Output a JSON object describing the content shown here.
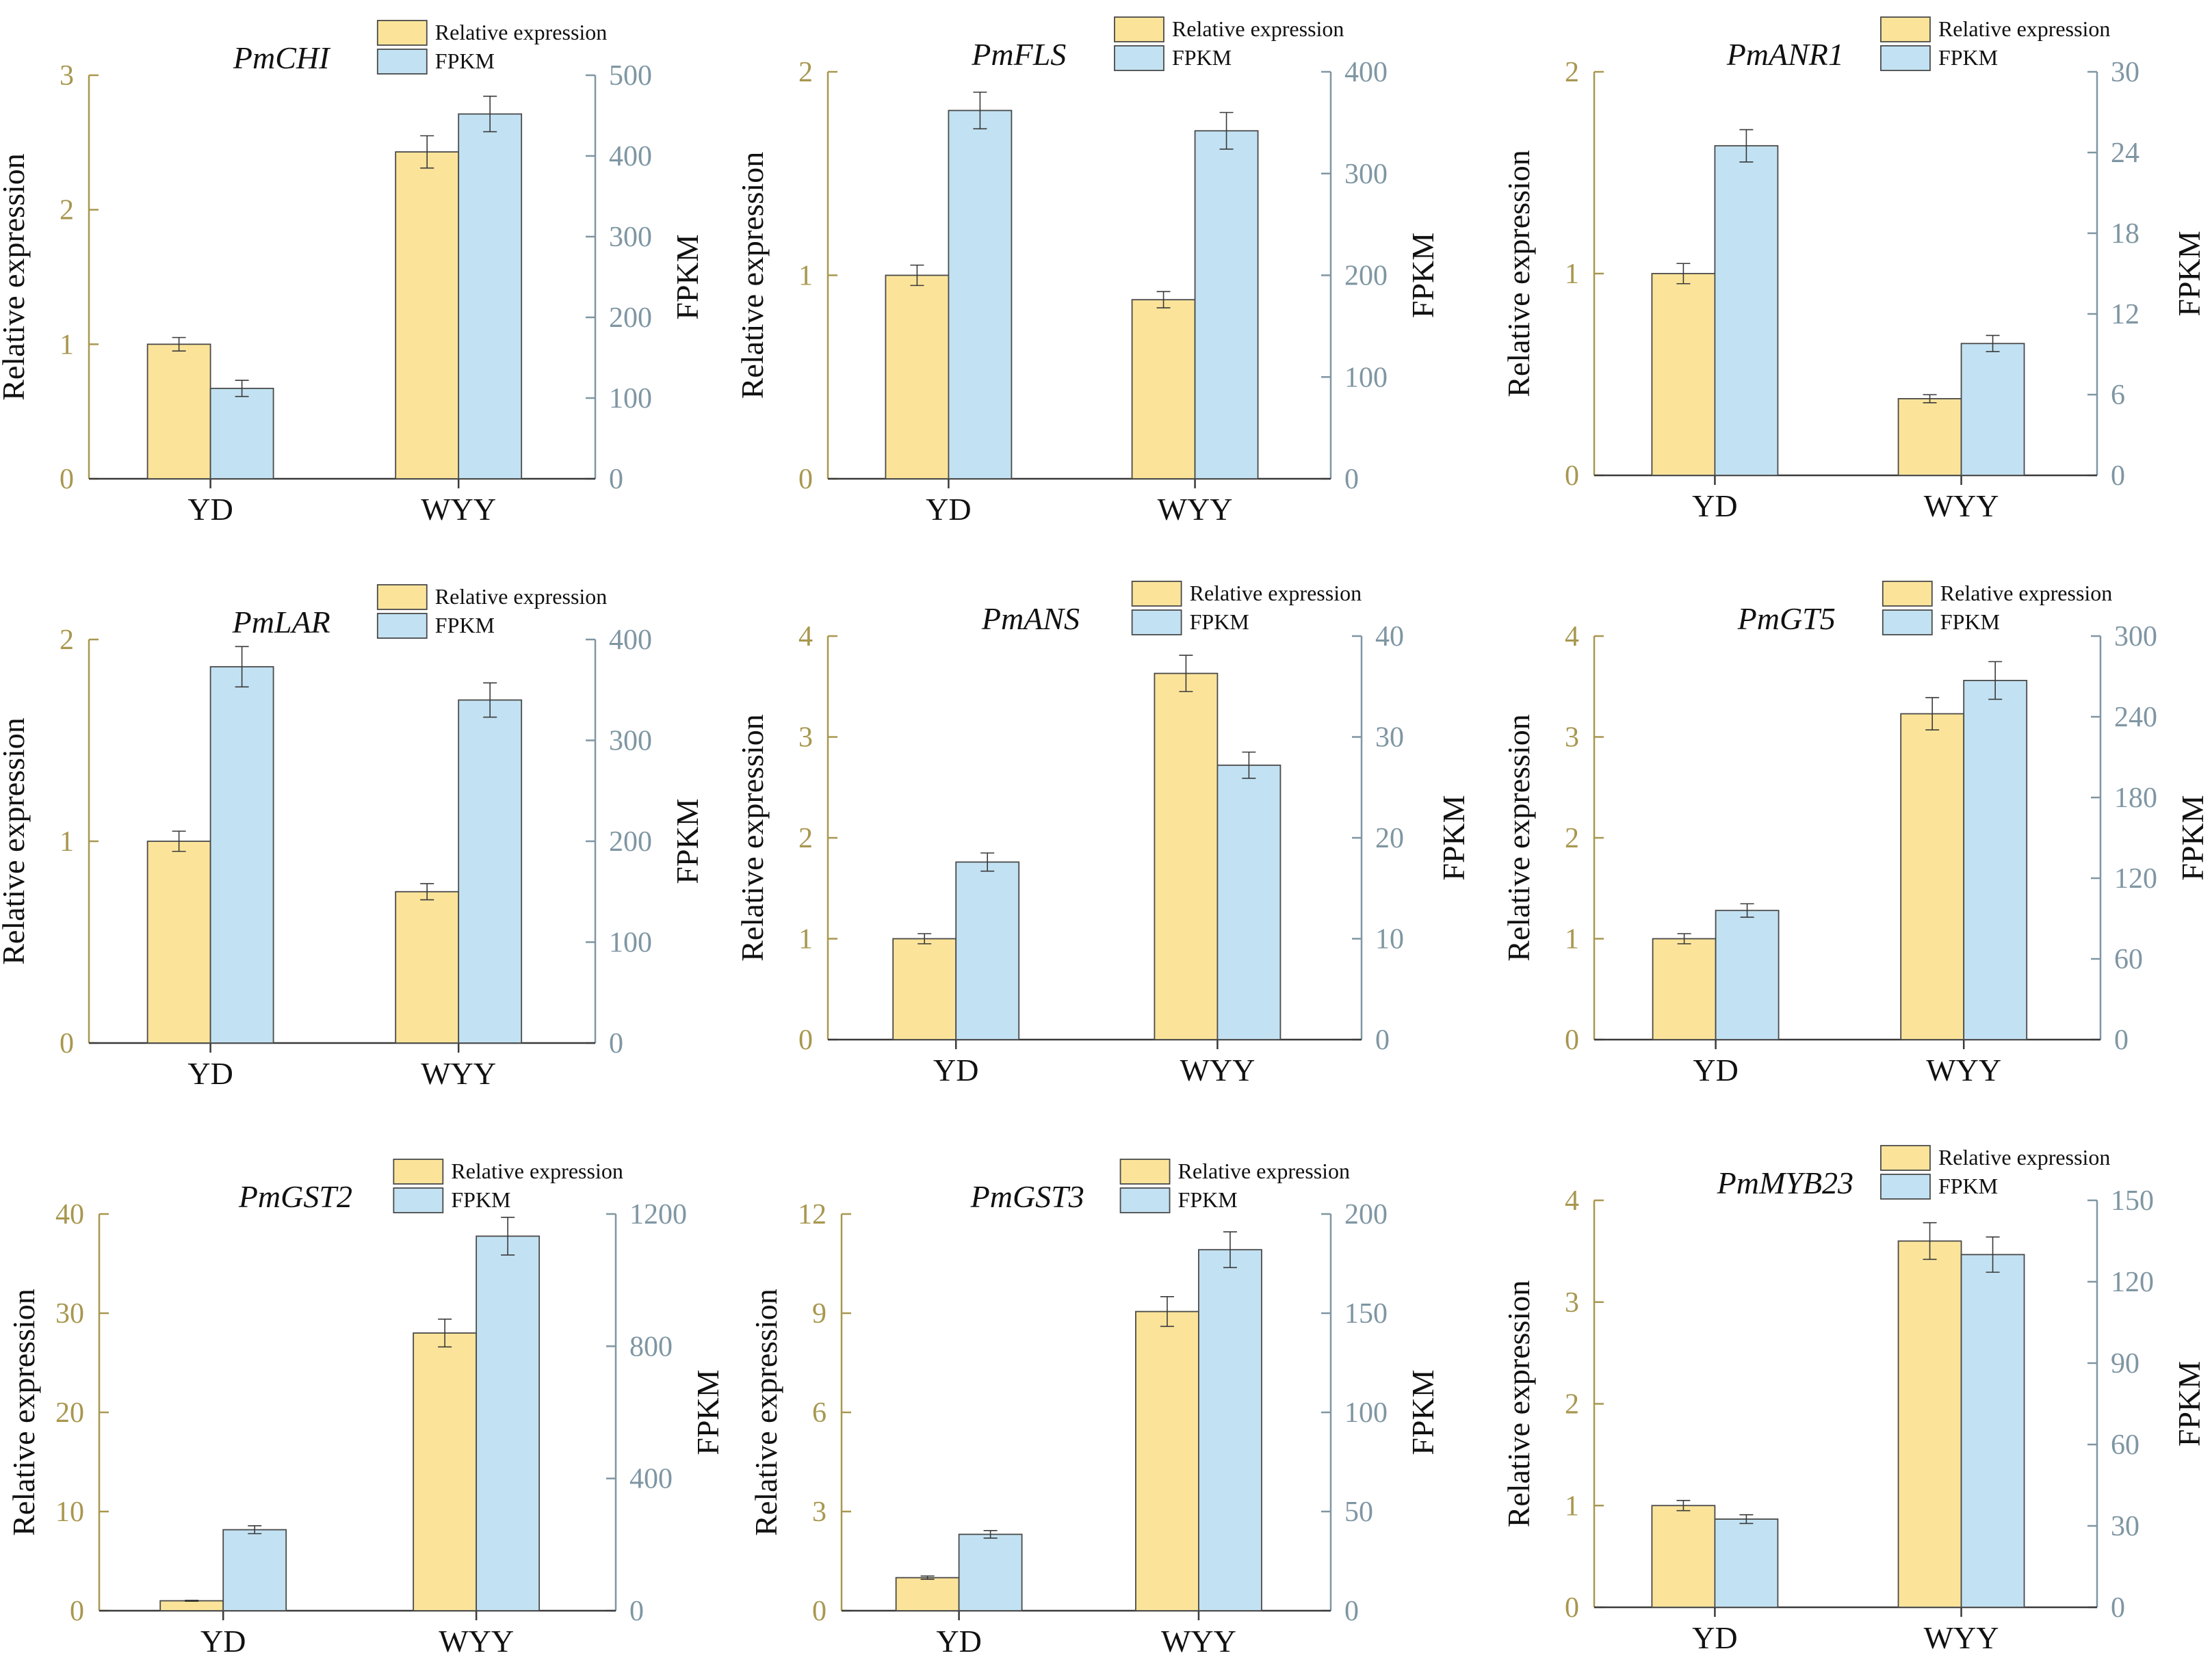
{
  "legend": {
    "relative_label": "Relative expression",
    "fpkm_label": "FPKM"
  },
  "colors": {
    "relative_fill": "#fbe49a",
    "fpkm_fill": "#c2e2f3",
    "bar_stroke": "#4a4a4a",
    "left_axis": "#a8974f",
    "right_axis": "#7f96a3",
    "axis_line": "#3a3a3a",
    "text": "#111111"
  },
  "chart_data": [
    {
      "type": "bar",
      "title": "PmCHI",
      "categories": [
        "YD",
        "WYY"
      ],
      "ylabel": "Relative expression",
      "y2label": "FPKM",
      "ylim": [
        0,
        3
      ],
      "yticks": [
        0,
        1,
        2,
        3
      ],
      "y2lim": [
        0,
        500
      ],
      "y2ticks": [
        0,
        100,
        200,
        300,
        400,
        500
      ],
      "series": [
        {
          "name": "Relative expression",
          "axis": "left",
          "values": [
            1.0,
            2.43
          ],
          "errors": [
            0.05,
            0.12
          ]
        },
        {
          "name": "FPKM",
          "axis": "right",
          "values": [
            112,
            452
          ],
          "errors": [
            10,
            22
          ]
        }
      ]
    },
    {
      "type": "bar",
      "title": "PmFLS",
      "categories": [
        "YD",
        "WYY"
      ],
      "ylabel": "Relative expression",
      "y2label": "FPKM",
      "ylim": [
        0,
        2
      ],
      "yticks": [
        0,
        1,
        2
      ],
      "y2lim": [
        0,
        400
      ],
      "y2ticks": [
        0,
        100,
        200,
        300,
        400
      ],
      "series": [
        {
          "name": "Relative expression",
          "axis": "left",
          "values": [
            1.0,
            0.88
          ],
          "errors": [
            0.05,
            0.04
          ]
        },
        {
          "name": "FPKM",
          "axis": "right",
          "values": [
            362,
            342
          ],
          "errors": [
            18,
            18
          ]
        }
      ]
    },
    {
      "type": "bar",
      "title": "PmANR1",
      "categories": [
        "YD",
        "WYY"
      ],
      "ylabel": "Relative expression",
      "y2label": "FPKM",
      "ylim": [
        0,
        2
      ],
      "yticks": [
        0,
        1,
        2
      ],
      "y2lim": [
        0,
        30
      ],
      "y2ticks": [
        0,
        6,
        12,
        18,
        24,
        30
      ],
      "series": [
        {
          "name": "Relative expression",
          "axis": "left",
          "values": [
            1.0,
            0.38
          ],
          "errors": [
            0.05,
            0.02
          ]
        },
        {
          "name": "FPKM",
          "axis": "right",
          "values": [
            24.5,
            9.8
          ],
          "errors": [
            1.2,
            0.6
          ]
        }
      ]
    },
    {
      "type": "bar",
      "title": "PmLAR",
      "categories": [
        "YD",
        "WYY"
      ],
      "ylabel": "Relative expression",
      "y2label": "FPKM",
      "ylim": [
        0,
        2
      ],
      "yticks": [
        0,
        1,
        2
      ],
      "y2lim": [
        0,
        400
      ],
      "y2ticks": [
        0,
        100,
        200,
        300,
        400
      ],
      "series": [
        {
          "name": "Relative expression",
          "axis": "left",
          "values": [
            1.0,
            0.75
          ],
          "errors": [
            0.05,
            0.04
          ]
        },
        {
          "name": "FPKM",
          "axis": "right",
          "values": [
            373,
            340
          ],
          "errors": [
            20,
            17
          ]
        }
      ]
    },
    {
      "type": "bar",
      "title": "PmANS",
      "categories": [
        "YD",
        "WYY"
      ],
      "ylabel": "Relative expression",
      "y2label": "FPKM",
      "ylim": [
        0,
        4
      ],
      "yticks": [
        0,
        1,
        2,
        3,
        4
      ],
      "y2lim": [
        0,
        40
      ],
      "y2ticks": [
        0,
        10,
        20,
        30,
        40
      ],
      "series": [
        {
          "name": "Relative expression",
          "axis": "left",
          "values": [
            1.0,
            3.63
          ],
          "errors": [
            0.05,
            0.18
          ]
        },
        {
          "name": "FPKM",
          "axis": "right",
          "values": [
            17.6,
            27.2
          ],
          "errors": [
            0.9,
            1.3
          ]
        }
      ]
    },
    {
      "type": "bar",
      "title": "PmGT5",
      "categories": [
        "YD",
        "WYY"
      ],
      "ylabel": "Relative expression",
      "y2label": "FPKM",
      "ylim": [
        0,
        4
      ],
      "yticks": [
        0,
        1,
        2,
        3,
        4
      ],
      "y2lim": [
        0,
        300
      ],
      "y2ticks": [
        0,
        60,
        120,
        180,
        240,
        300
      ],
      "series": [
        {
          "name": "Relative expression",
          "axis": "left",
          "values": [
            1.0,
            3.23
          ],
          "errors": [
            0.05,
            0.16
          ]
        },
        {
          "name": "FPKM",
          "axis": "right",
          "values": [
            96,
            267
          ],
          "errors": [
            5,
            14
          ]
        }
      ]
    },
    {
      "type": "bar",
      "title": "PmGST2",
      "categories": [
        "YD",
        "WYY"
      ],
      "ylabel": "Relative expression",
      "y2label": "FPKM",
      "ylim": [
        0,
        40
      ],
      "yticks": [
        0,
        10,
        20,
        30,
        40
      ],
      "y2lim": [
        0,
        1200
      ],
      "y2ticks": [
        0,
        400,
        800,
        1200
      ],
      "series": [
        {
          "name": "Relative expression",
          "axis": "left",
          "values": [
            1.0,
            28.0
          ],
          "errors": [
            0.05,
            1.4
          ]
        },
        {
          "name": "FPKM",
          "axis": "right",
          "values": [
            245,
            1133
          ],
          "errors": [
            12,
            57
          ]
        }
      ]
    },
    {
      "type": "bar",
      "title": "PmGST3",
      "categories": [
        "YD",
        "WYY"
      ],
      "ylabel": "Relative expression",
      "y2label": "FPKM",
      "ylim": [
        0,
        12
      ],
      "yticks": [
        0,
        3,
        6,
        9,
        12
      ],
      "y2lim": [
        0,
        200
      ],
      "y2ticks": [
        0,
        50,
        100,
        150,
        200
      ],
      "series": [
        {
          "name": "Relative expression",
          "axis": "left",
          "values": [
            1.0,
            9.05
          ],
          "errors": [
            0.05,
            0.45
          ]
        },
        {
          "name": "FPKM",
          "axis": "right",
          "values": [
            38.5,
            182
          ],
          "errors": [
            1.9,
            9
          ]
        }
      ]
    },
    {
      "type": "bar",
      "title": "PmMYB23",
      "categories": [
        "YD",
        "WYY"
      ],
      "ylabel": "Relative expression",
      "y2label": "FPKM",
      "ylim": [
        0,
        4
      ],
      "yticks": [
        0,
        1,
        2,
        3,
        4
      ],
      "y2lim": [
        0,
        150
      ],
      "y2ticks": [
        0,
        30,
        60,
        90,
        120,
        150
      ],
      "series": [
        {
          "name": "Relative expression",
          "axis": "left",
          "values": [
            1.0,
            3.6
          ],
          "errors": [
            0.05,
            0.18
          ]
        },
        {
          "name": "FPKM",
          "axis": "right",
          "values": [
            32.5,
            130
          ],
          "errors": [
            1.6,
            6.5
          ]
        }
      ]
    }
  ]
}
